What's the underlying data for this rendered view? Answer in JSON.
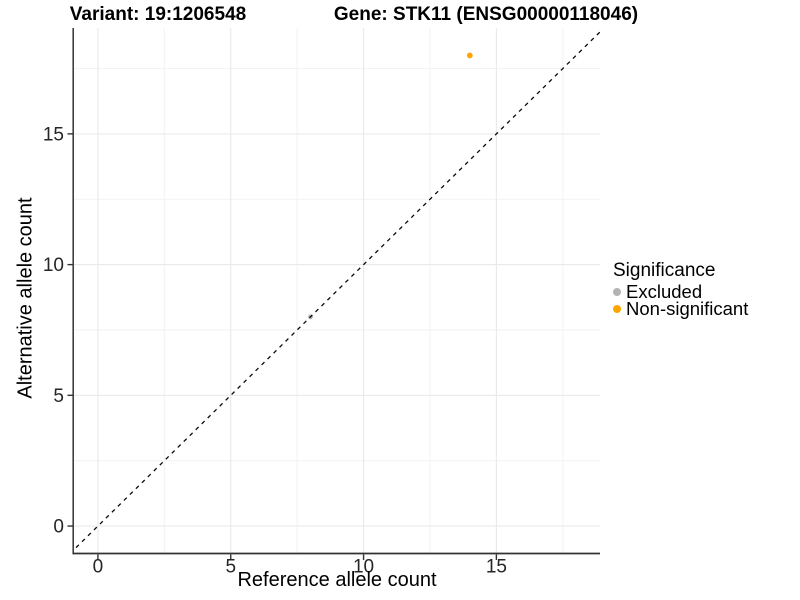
{
  "chart_data": {
    "type": "scatter",
    "title_variant": "Variant: 19:1206548",
    "title_gene": "Gene: STK11 (ENSG00000118046)",
    "xlabel": "Reference allele count",
    "ylabel": "Alternative allele count",
    "xlim": [
      -0.9,
      18.9
    ],
    "ylim": [
      -1.05,
      19.05
    ],
    "xticks": [
      0,
      5,
      10,
      15
    ],
    "yticks": [
      0,
      5,
      10,
      15
    ],
    "xminor": [
      2.5,
      7.5,
      12.5,
      17.5
    ],
    "yminor": [
      2.5,
      7.5,
      12.5,
      17.5
    ],
    "grid": "major+minor on white panel",
    "identity_line": {
      "equation": "y = x",
      "style": "dashed",
      "color": "#0a0a0a"
    },
    "series": [
      {
        "name": "Excluded",
        "color": "#B3B3B3",
        "point_radius": 2.4,
        "points": [
          {
            "x": 8,
            "y": 8
          }
        ]
      },
      {
        "name": "Non-significant",
        "color": "#FFA500",
        "point_radius": 2.9,
        "points": [
          {
            "x": 14,
            "y": 18
          }
        ]
      }
    ],
    "legend": {
      "title": "Significance",
      "position": "right",
      "entries": [
        {
          "label": "Excluded",
          "color": "#B3B3B3"
        },
        {
          "label": "Non-significant",
          "color": "#FFA500"
        }
      ]
    }
  },
  "colors": {
    "background": "#FFFFFF",
    "axis_line": "#333333",
    "tick_text": "#262626",
    "grid_major": "#E9E9E9",
    "grid_minor": "#F2F2F2"
  }
}
